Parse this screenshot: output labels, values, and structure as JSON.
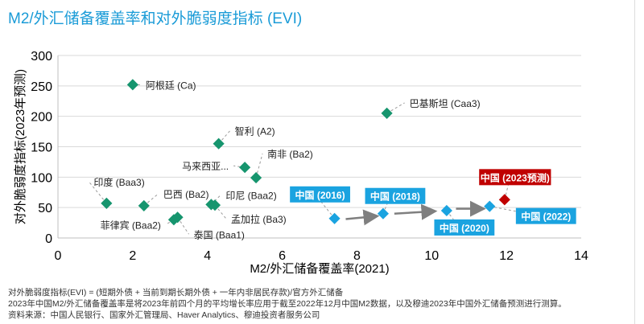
{
  "chart_data": {
    "type": "scatter",
    "title": "M2/外汇储备覆盖率和对外脆弱度指标 (EVI)",
    "xlabel": "M2/外汇储备覆盖率(2021)",
    "ylabel": "对外脆弱度指标(2023年预测)",
    "xlim": [
      0,
      14
    ],
    "ylim": [
      0,
      300
    ],
    "xticks": [
      0,
      2,
      4,
      6,
      8,
      10,
      12,
      14
    ],
    "yticks": [
      0,
      50,
      100,
      150,
      200,
      250,
      300
    ],
    "grid": "horizontal",
    "colors": {
      "peer": "#16956e",
      "china": "#1aa3e0",
      "china_forecast": "#c00000",
      "title": "#1a9bd7",
      "arrow": "#7f7f7f"
    },
    "points": [
      {
        "label": "阿根廷 (Ca)",
        "x": 2.0,
        "y": 252,
        "group": "peer"
      },
      {
        "label": "智利 (A2)",
        "x": 4.3,
        "y": 155,
        "group": "peer"
      },
      {
        "label": "巴基斯坦 (Caa3)",
        "x": 8.8,
        "y": 205,
        "group": "peer"
      },
      {
        "label": "马来西亚...",
        "x": 5.0,
        "y": 116,
        "group": "peer"
      },
      {
        "label": "南非 (Ba2)",
        "x": 5.3,
        "y": 99,
        "group": "peer"
      },
      {
        "label": "印度 (Baa3)",
        "x": 1.3,
        "y": 57,
        "group": "peer"
      },
      {
        "label": "巴西 (Ba2)",
        "x": 2.3,
        "y": 53,
        "group": "peer"
      },
      {
        "label": "印尼 (Baa2)",
        "x": 4.1,
        "y": 55,
        "group": "peer"
      },
      {
        "label": "孟加拉 (Ba3)",
        "x": 4.2,
        "y": 54,
        "group": "peer"
      },
      {
        "label": "菲律宾 (Baa2)",
        "x": 3.1,
        "y": 30,
        "group": "peer"
      },
      {
        "label": "泰国 (Baa1)",
        "x": 3.2,
        "y": 34,
        "group": "peer"
      },
      {
        "label": "中国 (2016)",
        "x": 7.4,
        "y": 32,
        "group": "china"
      },
      {
        "label": "中国 (2018)",
        "x": 8.7,
        "y": 40,
        "group": "china"
      },
      {
        "label": "中国 (2020)",
        "x": 10.4,
        "y": 45,
        "group": "china"
      },
      {
        "label": "中国 (2022)",
        "x": 11.55,
        "y": 52,
        "group": "china"
      },
      {
        "label": "中国 (2023预测)",
        "x": 11.95,
        "y": 63,
        "group": "china_forecast"
      }
    ]
  },
  "notes": [
    "对外脆弱度指标(EVI) = (短期外债 + 当前到期长期外债 + 一年内非居民存款)/官方外汇储备",
    "2023年中国M2/外汇储备覆盖率是将2023年前四个月的平均增长率应用于截至2022年12月中国M2数据，以及穆迪2023年中国外汇储备预测进行测算。",
    "资料来源：中国人民银行、国家外汇管理局、Haver Analytics、穆迪投资者服务公司"
  ]
}
